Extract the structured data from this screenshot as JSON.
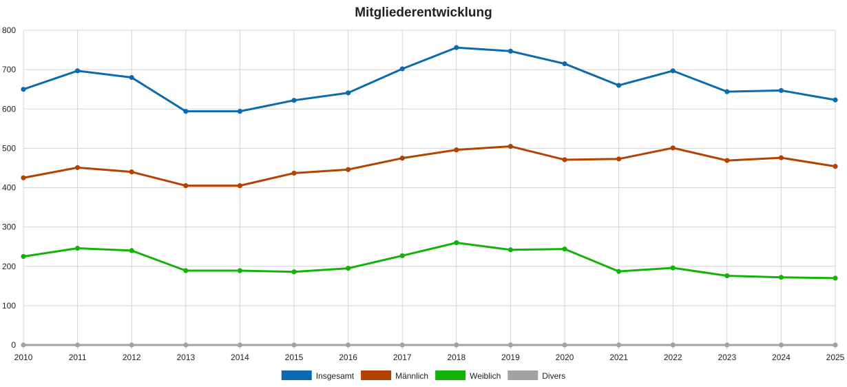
{
  "chart_data": {
    "type": "line",
    "title": "Mitgliederentwicklung",
    "xlabel": "",
    "ylabel": "",
    "x": [
      "2010",
      "2011",
      "2012",
      "2013",
      "2014",
      "2015",
      "2016",
      "2017",
      "2018",
      "2019",
      "2020",
      "2021",
      "2022",
      "2023",
      "2024",
      "2025"
    ],
    "ylim": [
      0,
      800
    ],
    "yticks": [
      0,
      100,
      200,
      300,
      400,
      500,
      600,
      700,
      800
    ],
    "grid": true,
    "legend_position": "bottom",
    "series": [
      {
        "name": "Insgesamt",
        "color": "#0b6bae",
        "values": [
          650,
          697,
          680,
          594,
          594,
          622,
          641,
          702,
          756,
          747,
          715,
          660,
          697,
          644,
          647,
          623
        ]
      },
      {
        "name": "Männlich",
        "color": "#b24300",
        "values": [
          425,
          451,
          440,
          405,
          405,
          437,
          446,
          475,
          496,
          505,
          471,
          473,
          501,
          469,
          476,
          454
        ]
      },
      {
        "name": "Weiblich",
        "color": "#13b30a",
        "values": [
          225,
          246,
          240,
          189,
          189,
          186,
          195,
          227,
          260,
          242,
          244,
          187,
          196,
          176,
          172,
          170
        ]
      },
      {
        "name": "Divers",
        "color": "#a2a2a2",
        "values": [
          0,
          0,
          0,
          0,
          0,
          0,
          0,
          0,
          0,
          0,
          0,
          0,
          0,
          0,
          0,
          0
        ]
      }
    ]
  }
}
